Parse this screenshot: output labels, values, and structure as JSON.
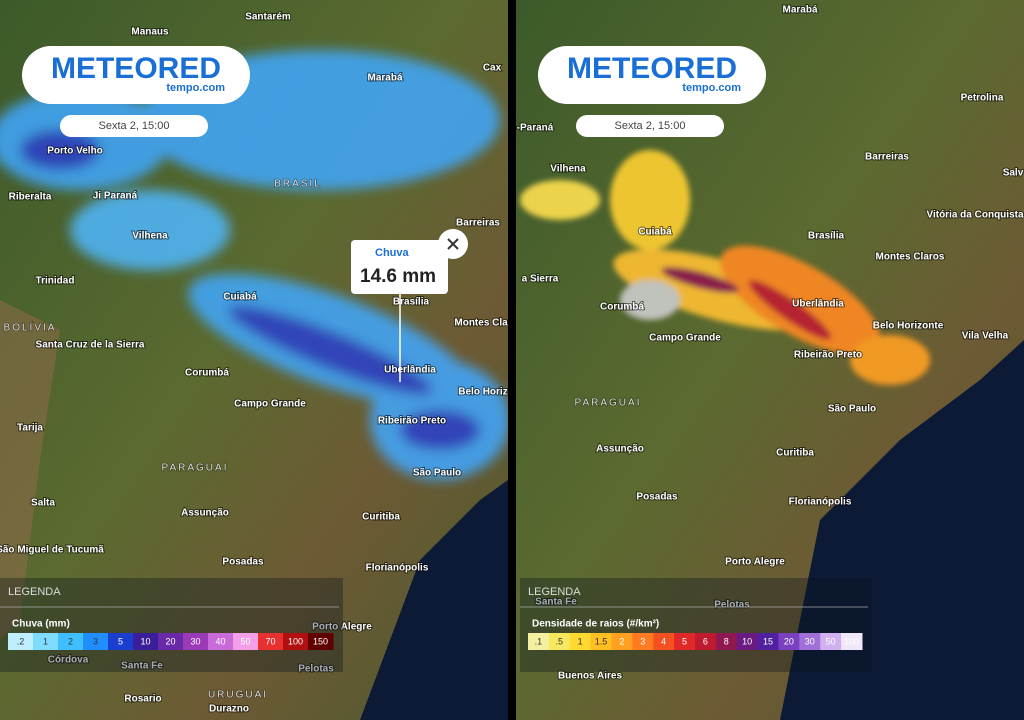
{
  "panels": [
    {
      "logo": {
        "brand": "METEORED",
        "site": "tempo.com"
      },
      "date": "Sexta 2, 15:00",
      "tooltip": {
        "label": "Chuva",
        "value": "14.6 mm"
      },
      "places": [
        "Santarém",
        "Manaus",
        "Marabá",
        "Cax",
        "Porto Velho",
        "BRASIL",
        "Riberalta",
        "Ji Paraná",
        "Vilhena",
        "Barreiras",
        "Trinidad",
        "Cuiabá",
        "Brasília",
        "Montes Clar",
        "BOLÍVIA",
        "Santa Cruz de la Sierra",
        "Corumbá",
        "Uberlândia",
        "Belo Horiz",
        "Campo Grande",
        "Ribeirão Preto",
        "Tarija",
        "PARAGUAI",
        "São Paulo",
        "Salta",
        "Assunção",
        "Curitiba",
        "São Miguel de Tucumã",
        "Posadas",
        "Florianópolis",
        "Porto Alegre",
        "Córdova",
        "Santa Fe",
        "Pelotas",
        "Rosario",
        "URUGUAI",
        "Durazno"
      ],
      "legend": {
        "title": "LEGENDA",
        "subtitle": "Chuva (mm)",
        "items": [
          {
            "label": ".2",
            "color": "#bfefff"
          },
          {
            "label": "1",
            "color": "#7fdcff"
          },
          {
            "label": "2",
            "color": "#3fbfff"
          },
          {
            "label": "3",
            "color": "#1f8fff"
          },
          {
            "label": "5",
            "color": "#1a3fd0"
          },
          {
            "label": "10",
            "color": "#3a1e9a"
          },
          {
            "label": "20",
            "color": "#6a2aa8"
          },
          {
            "label": "30",
            "color": "#9a3ab8"
          },
          {
            "label": "40",
            "color": "#c96ad8"
          },
          {
            "label": "50",
            "color": "#f3a0e8"
          },
          {
            "label": "70",
            "color": "#e83030"
          },
          {
            "label": "100",
            "color": "#b01010"
          },
          {
            "label": "150",
            "color": "#600000"
          }
        ]
      }
    },
    {
      "logo": {
        "brand": "METEORED",
        "site": "tempo.com"
      },
      "date": "Sexta 2, 15:00",
      "places": [
        "Marabá",
        "Petrolina",
        "-Paraná",
        "Barreiras",
        "Salv",
        "Vilhena",
        "Vitória da Conquista",
        "Cuiabá",
        "Brasília",
        "Montes Claros",
        "a Sierra",
        "Corumbá",
        "Uberlândia",
        "Belo Horizonte",
        "Vila Velha",
        "Campo Grande",
        "Ribeirão Preto",
        "PARAGUAI",
        "São Paulo",
        "Assunção",
        "Curitiba",
        "Posadas",
        "Florianópolis",
        "Porto Alegre",
        "Santa Fe",
        "Pelotas",
        "Buenos Aires"
      ],
      "legend": {
        "title": "LEGENDA",
        "subtitle": "Densidade de raios (#/km²)",
        "items": [
          {
            "label": ".1",
            "color": "#f3f0a0"
          },
          {
            "label": ".5",
            "color": "#f8e860"
          },
          {
            "label": "1",
            "color": "#ffd830"
          },
          {
            "label": "1.5",
            "color": "#ffbf20"
          },
          {
            "label": "2",
            "color": "#ffa020"
          },
          {
            "label": "3",
            "color": "#ff7a20"
          },
          {
            "label": "4",
            "color": "#f55020"
          },
          {
            "label": "5",
            "color": "#e02828"
          },
          {
            "label": "6",
            "color": "#c01a30"
          },
          {
            "label": "8",
            "color": "#901850"
          },
          {
            "label": "10",
            "color": "#6a1a80"
          },
          {
            "label": "15",
            "color": "#5020a0"
          },
          {
            "label": "20",
            "color": "#7a40c0"
          },
          {
            "label": "30",
            "color": "#a070d8"
          },
          {
            "label": "50",
            "color": "#d0b0ee"
          },
          {
            "label": "100",
            "color": "#f0e8fa"
          }
        ]
      }
    }
  ]
}
